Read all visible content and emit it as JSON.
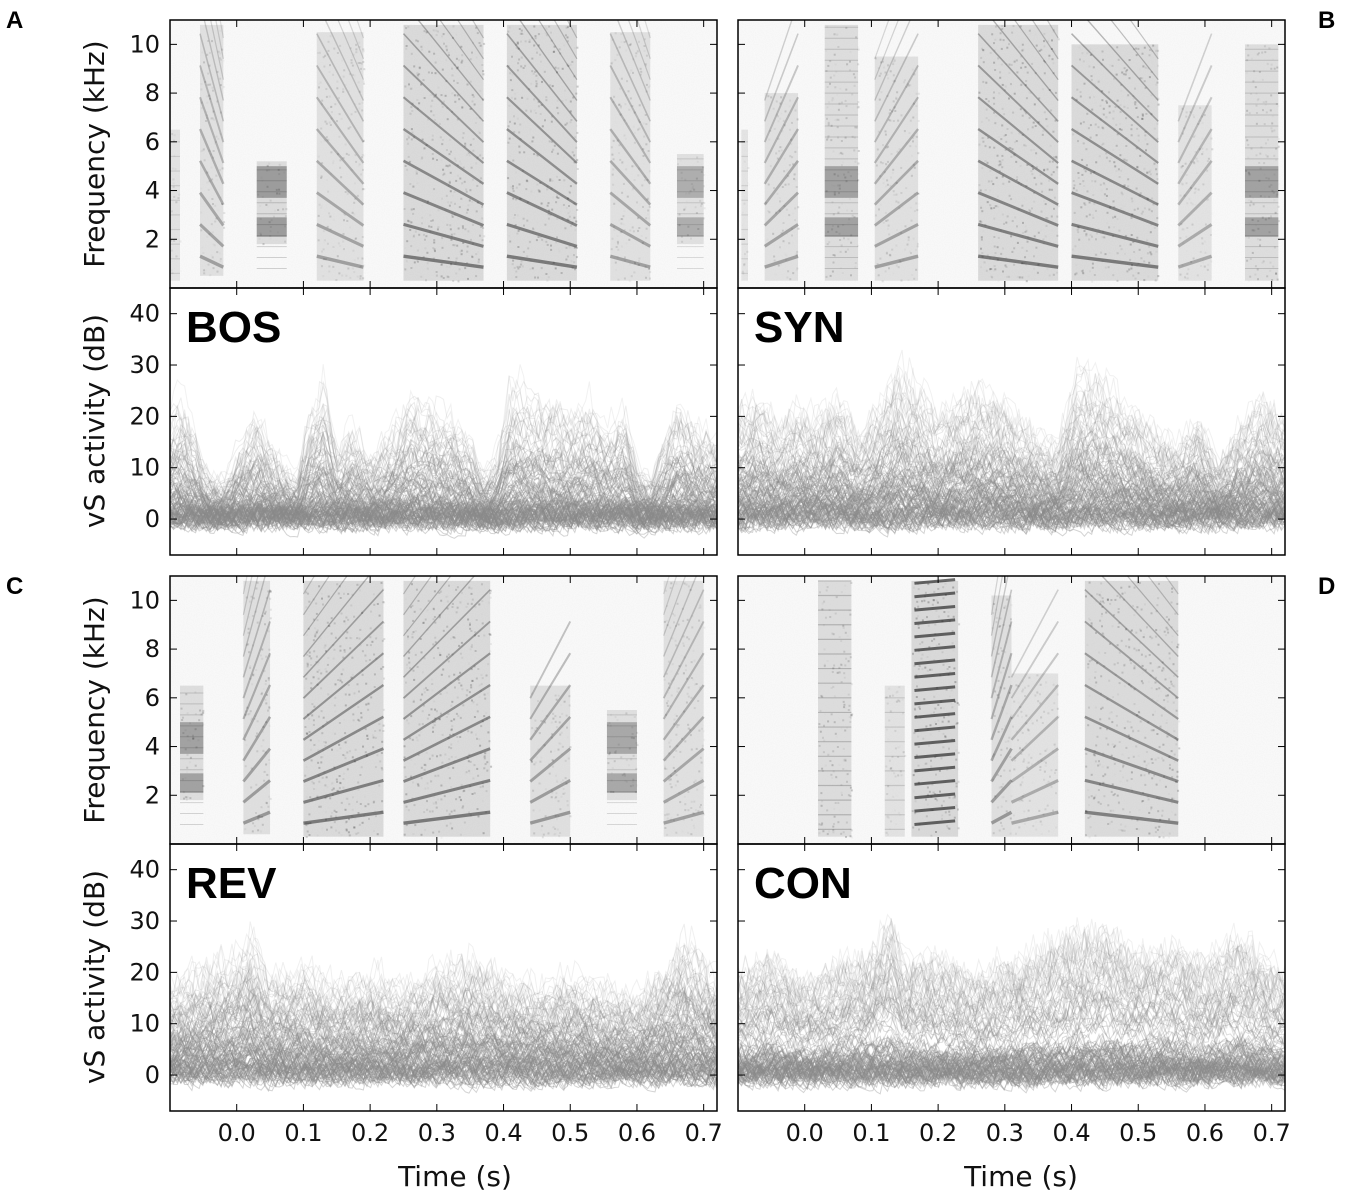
{
  "chart_data": [
    {
      "type": "heatmap",
      "panel": "A",
      "plot": "spectrogram",
      "ylabel": "Frequency (kHz)",
      "yticks": [
        2,
        4,
        6,
        8,
        10
      ],
      "ylim": [
        0,
        11
      ],
      "xlim": [
        -0.1,
        0.72
      ],
      "syllables": [
        {
          "t0": -0.1,
          "t1": -0.085,
          "f0": 0.3,
          "f1": 6.5,
          "intensity": 0.35,
          "pattern": "noise"
        },
        {
          "t0": -0.055,
          "t1": -0.02,
          "f0": 0.5,
          "f1": 10.8,
          "intensity": 0.45,
          "pattern": "harmonic-down"
        },
        {
          "t0": 0.03,
          "t1": 0.075,
          "f0": 1.8,
          "f1": 5.2,
          "intensity": 0.6,
          "pattern": "bands"
        },
        {
          "t0": 0.12,
          "t1": 0.19,
          "f0": 0.3,
          "f1": 10.5,
          "intensity": 0.45,
          "pattern": "harmonic-down"
        },
        {
          "t0": 0.25,
          "t1": 0.37,
          "f0": 0.3,
          "f1": 10.8,
          "intensity": 0.7,
          "pattern": "harmonic-down"
        },
        {
          "t0": 0.405,
          "t1": 0.51,
          "f0": 0.3,
          "f1": 10.8,
          "intensity": 0.7,
          "pattern": "harmonic-down"
        },
        {
          "t0": 0.56,
          "t1": 0.62,
          "f0": 0.3,
          "f1": 10.5,
          "intensity": 0.45,
          "pattern": "harmonic-down"
        },
        {
          "t0": 0.66,
          "t1": 0.7,
          "f0": 1.8,
          "f1": 5.5,
          "intensity": 0.45,
          "pattern": "bands"
        }
      ]
    },
    {
      "type": "line",
      "panel": "A",
      "plot": "activity",
      "label": "BOS",
      "ylabel": "vS activity (dB)",
      "xlabel": "",
      "yticks": [
        0,
        10,
        20,
        30,
        40
      ],
      "ylim": [
        -7,
        45
      ],
      "xlim": [
        -0.1,
        0.72
      ],
      "noise_level": 4,
      "peak_envelope": {
        "x": [
          -0.1,
          -0.08,
          -0.05,
          -0.02,
          0.0,
          0.03,
          0.06,
          0.09,
          0.11,
          0.13,
          0.15,
          0.17,
          0.2,
          0.22,
          0.24,
          0.26,
          0.29,
          0.32,
          0.35,
          0.37,
          0.39,
          0.41,
          0.44,
          0.47,
          0.5,
          0.53,
          0.56,
          0.58,
          0.6,
          0.62,
          0.64,
          0.66,
          0.69,
          0.72
        ],
        "y": [
          25,
          28,
          12,
          8,
          15,
          24,
          14,
          10,
          24,
          32,
          16,
          22,
          14,
          18,
          22,
          28,
          26,
          24,
          18,
          10,
          14,
          31,
          28,
          26,
          24,
          27,
          20,
          26,
          12,
          8,
          18,
          26,
          22,
          18
        ]
      }
    },
    {
      "type": "heatmap",
      "panel": "B",
      "plot": "spectrogram",
      "yticks": [
        2,
        4,
        6,
        8,
        10
      ],
      "ylim": [
        0,
        11
      ],
      "xlim": [
        -0.1,
        0.72
      ],
      "syllables": [
        {
          "t0": -0.095,
          "t1": -0.085,
          "f0": 0.3,
          "f1": 6.5,
          "intensity": 0.3,
          "pattern": "noise"
        },
        {
          "t0": -0.06,
          "t1": -0.01,
          "f0": 0.3,
          "f1": 8.0,
          "intensity": 0.45,
          "pattern": "harmonic-up"
        },
        {
          "t0": 0.03,
          "t1": 0.08,
          "f0": 0.3,
          "f1": 10.8,
          "intensity": 0.55,
          "pattern": "bands"
        },
        {
          "t0": 0.105,
          "t1": 0.17,
          "f0": 0.3,
          "f1": 9.5,
          "intensity": 0.45,
          "pattern": "harmonic-up"
        },
        {
          "t0": 0.26,
          "t1": 0.38,
          "f0": 0.3,
          "f1": 10.8,
          "intensity": 0.7,
          "pattern": "harmonic-down"
        },
        {
          "t0": 0.4,
          "t1": 0.53,
          "f0": 0.3,
          "f1": 10.0,
          "intensity": 0.7,
          "pattern": "harmonic-down"
        },
        {
          "t0": 0.56,
          "t1": 0.61,
          "f0": 0.3,
          "f1": 7.5,
          "intensity": 0.4,
          "pattern": "harmonic-up"
        },
        {
          "t0": 0.66,
          "t1": 0.71,
          "f0": 0.3,
          "f1": 10.0,
          "intensity": 0.55,
          "pattern": "bands"
        }
      ]
    },
    {
      "type": "line",
      "panel": "B",
      "plot": "activity",
      "label": "SYN",
      "yticks": [
        0,
        10,
        20,
        30,
        40
      ],
      "ylim": [
        -7,
        45
      ],
      "xlim": [
        -0.1,
        0.72
      ],
      "noise_level": 4,
      "peak_envelope": {
        "x": [
          -0.1,
          -0.07,
          -0.04,
          -0.01,
          0.02,
          0.05,
          0.08,
          0.11,
          0.14,
          0.17,
          0.2,
          0.23,
          0.26,
          0.29,
          0.32,
          0.35,
          0.38,
          0.41,
          0.44,
          0.47,
          0.5,
          0.53,
          0.56,
          0.59,
          0.62,
          0.65,
          0.68,
          0.72
        ],
        "y": [
          24,
          26,
          20,
          24,
          22,
          26,
          18,
          24,
          32,
          28,
          22,
          26,
          28,
          26,
          22,
          18,
          16,
          32,
          30,
          26,
          22,
          18,
          16,
          22,
          12,
          20,
          26,
          22
        ]
      }
    },
    {
      "type": "heatmap",
      "panel": "C",
      "plot": "spectrogram",
      "ylabel": "Frequency (kHz)",
      "yticks": [
        2,
        4,
        6,
        8,
        10
      ],
      "ylim": [
        0,
        11
      ],
      "xlim": [
        -0.1,
        0.72
      ],
      "syllables": [
        {
          "t0": -0.085,
          "t1": -0.05,
          "f0": 1.8,
          "f1": 6.5,
          "intensity": 0.55,
          "pattern": "bands"
        },
        {
          "t0": 0.01,
          "t1": 0.05,
          "f0": 0.4,
          "f1": 10.8,
          "intensity": 0.5,
          "pattern": "harmonic-up"
        },
        {
          "t0": 0.1,
          "t1": 0.22,
          "f0": 0.3,
          "f1": 10.8,
          "intensity": 0.7,
          "pattern": "harmonic-up"
        },
        {
          "t0": 0.25,
          "t1": 0.38,
          "f0": 0.3,
          "f1": 10.8,
          "intensity": 0.7,
          "pattern": "harmonic-up"
        },
        {
          "t0": 0.44,
          "t1": 0.5,
          "f0": 0.3,
          "f1": 6.5,
          "intensity": 0.5,
          "pattern": "harmonic-up"
        },
        {
          "t0": 0.555,
          "t1": 0.6,
          "f0": 1.8,
          "f1": 5.5,
          "intensity": 0.5,
          "pattern": "bands"
        },
        {
          "t0": 0.64,
          "t1": 0.7,
          "f0": 0.3,
          "f1": 10.8,
          "intensity": 0.45,
          "pattern": "harmonic-up"
        }
      ]
    },
    {
      "type": "line",
      "panel": "C",
      "plot": "activity",
      "label": "REV",
      "ylabel": "vS activity (dB)",
      "xlabel": "Time (s)",
      "yticks": [
        0,
        10,
        20,
        30,
        40
      ],
      "xticks": [
        0.0,
        0.1,
        0.2,
        0.3,
        0.4,
        0.5,
        0.6,
        0.7
      ],
      "xticklabels": [
        "0.0",
        "0.1",
        "0.2",
        "0.3",
        "0.4",
        "0.5",
        "0.6",
        "0.7"
      ],
      "ylim": [
        -7,
        45
      ],
      "xlim": [
        -0.1,
        0.72
      ],
      "noise_level": 4,
      "peak_envelope": {
        "x": [
          -0.1,
          -0.05,
          0.0,
          0.02,
          0.05,
          0.1,
          0.15,
          0.2,
          0.25,
          0.3,
          0.35,
          0.4,
          0.45,
          0.5,
          0.55,
          0.6,
          0.65,
          0.67,
          0.72
        ],
        "y": [
          20,
          24,
          26,
          32,
          22,
          24,
          20,
          22,
          20,
          24,
          26,
          22,
          20,
          22,
          20,
          18,
          26,
          31,
          22
        ]
      }
    },
    {
      "type": "heatmap",
      "panel": "D",
      "plot": "spectrogram",
      "yticks": [
        2,
        4,
        6,
        8,
        10
      ],
      "ylim": [
        0,
        11
      ],
      "xlim": [
        -0.1,
        0.72
      ],
      "syllables": [
        {
          "t0": 0.02,
          "t1": 0.07,
          "f0": 0.3,
          "f1": 10.8,
          "intensity": 0.6,
          "pattern": "noise"
        },
        {
          "t0": 0.12,
          "t1": 0.15,
          "f0": 0.3,
          "f1": 6.5,
          "intensity": 0.4,
          "pattern": "noise"
        },
        {
          "t0": 0.16,
          "t1": 0.23,
          "f0": 0.3,
          "f1": 10.8,
          "intensity": 0.75,
          "pattern": "ladder"
        },
        {
          "t0": 0.28,
          "t1": 0.31,
          "f0": 0.3,
          "f1": 10.2,
          "intensity": 0.5,
          "pattern": "harmonic-up"
        },
        {
          "t0": 0.31,
          "t1": 0.38,
          "f0": 0.3,
          "f1": 7.0,
          "intensity": 0.4,
          "pattern": "harmonic-up"
        },
        {
          "t0": 0.42,
          "t1": 0.56,
          "f0": 0.3,
          "f1": 10.8,
          "intensity": 0.65,
          "pattern": "harmonic-down"
        }
      ]
    },
    {
      "type": "line",
      "panel": "D",
      "plot": "activity",
      "label": "CON",
      "xlabel": "Time (s)",
      "yticks": [
        0,
        10,
        20,
        30,
        40
      ],
      "xticks": [
        0.0,
        0.1,
        0.2,
        0.3,
        0.4,
        0.5,
        0.6,
        0.7
      ],
      "xticklabels": [
        "0.0",
        "0.1",
        "0.2",
        "0.3",
        "0.4",
        "0.5",
        "0.6",
        "0.7"
      ],
      "ylim": [
        -7,
        45
      ],
      "xlim": [
        -0.1,
        0.72
      ],
      "noise_level": 4,
      "peak_envelope": {
        "x": [
          -0.1,
          -0.05,
          0.0,
          0.05,
          0.1,
          0.13,
          0.15,
          0.2,
          0.25,
          0.3,
          0.35,
          0.4,
          0.45,
          0.5,
          0.55,
          0.6,
          0.65,
          0.7,
          0.72
        ],
        "y": [
          22,
          26,
          20,
          24,
          26,
          34,
          24,
          26,
          22,
          24,
          26,
          30,
          32,
          26,
          28,
          24,
          30,
          24,
          22
        ]
      }
    }
  ],
  "panels": {
    "A": {
      "letter": "A",
      "stim_label": "BOS"
    },
    "B": {
      "letter": "B",
      "stim_label": "SYN"
    },
    "C": {
      "letter": "C",
      "stim_label": "REV"
    },
    "D": {
      "letter": "D",
      "stim_label": "CON"
    }
  },
  "axes": {
    "spec_ylabel": "Frequency (kHz)",
    "act_ylabel": "vS activity (dB)",
    "xlabel": "Time (s)",
    "spec_yticks": [
      "2",
      "4",
      "6",
      "8",
      "10"
    ],
    "act_yticks": [
      "0",
      "10",
      "20",
      "30",
      "40"
    ],
    "xticks": [
      "0.0",
      "0.1",
      "0.2",
      "0.3",
      "0.4",
      "0.5",
      "0.6",
      "0.7"
    ]
  },
  "colors": {
    "trace": "#8a8a8a",
    "spectrogram_ink": "#1a1a1a",
    "frame": "#000000"
  }
}
